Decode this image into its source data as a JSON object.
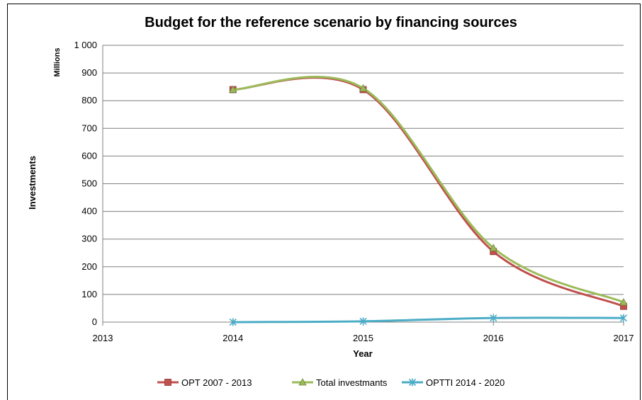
{
  "chart_data": {
    "type": "line",
    "title": "Budget for the reference scenario by financing sources",
    "xlabel": "Year",
    "ylabel": "Investments",
    "yunits": "Millions",
    "x_ticks": [
      "2013",
      "2014",
      "2015",
      "2016",
      "2017"
    ],
    "y_ticks": [
      "0",
      "100",
      "200",
      "300",
      "400",
      "500",
      "600",
      "700",
      "800",
      "900",
      "1 000"
    ],
    "xlim": [
      2013,
      2017
    ],
    "ylim": [
      0,
      1000
    ],
    "grid": "horizontal",
    "legend_position": "bottom",
    "smooth": true,
    "series": [
      {
        "name": "OPT 2007 - 2013",
        "color": "#c0504d",
        "marker": "square",
        "x": [
          2014,
          2015,
          2016,
          2017
        ],
        "y": [
          840,
          840,
          255,
          57
        ]
      },
      {
        "name": "Total investmants",
        "color": "#9bbb59",
        "marker": "triangle",
        "x": [
          2014,
          2015,
          2016,
          2017
        ],
        "y": [
          840,
          845,
          268,
          72
        ]
      },
      {
        "name": "OPTTI 2014 - 2020",
        "color": "#4bacc6",
        "marker": "star",
        "x": [
          2014,
          2015,
          2016,
          2017
        ],
        "y": [
          0,
          3,
          15,
          15
        ]
      }
    ]
  }
}
